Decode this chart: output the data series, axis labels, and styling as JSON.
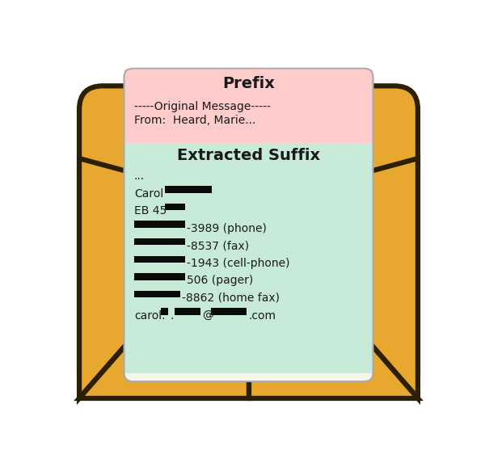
{
  "envelope_color": "#E8A830",
  "envelope_outline": "#2D2000",
  "paper_bg": "#F5F5E8",
  "prefix_bg": "#FFCCCC",
  "suffix_bg": "#C8EAD8",
  "prefix_title": "Prefix",
  "prefix_lines": [
    "-----Original Message-----",
    "From:  Heard, Marie..."
  ],
  "suffix_title": "Extracted Suffix",
  "text_color": "#1A1A1A",
  "redact_color": "#0A0A0A",
  "title_fontsize": 14,
  "body_fontsize": 10
}
